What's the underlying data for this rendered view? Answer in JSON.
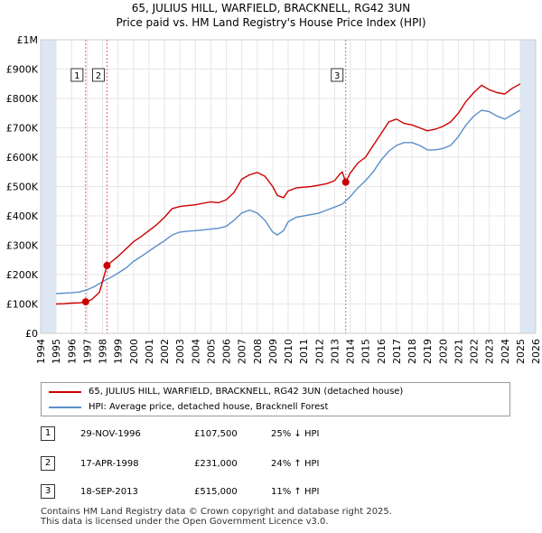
{
  "title": {
    "line1": "65, JULIUS HILL, WARFIELD, BRACKNELL, RG42 3UN",
    "line2": "Price paid vs. HM Land Registry's House Price Index (HPI)"
  },
  "colors": {
    "property": "#cc0000",
    "hpi": "#5b8fc9",
    "band": "#dde6f3",
    "grid": "#e6e6e6",
    "marker_line": "#e06666"
  },
  "chart_data": {
    "type": "line",
    "title": "Price paid vs. HM Land Registry's House Price Index (HPI)",
    "xlabel": "",
    "ylabel": "",
    "xlim": [
      1994,
      2026
    ],
    "ylim": [
      0,
      1000000
    ],
    "y_ticks": [
      {
        "value": 0,
        "label": "£0"
      },
      {
        "value": 100000,
        "label": "£100K"
      },
      {
        "value": 200000,
        "label": "£200K"
      },
      {
        "value": 300000,
        "label": "£300K"
      },
      {
        "value": 400000,
        "label": "£400K"
      },
      {
        "value": 500000,
        "label": "£500K"
      },
      {
        "value": 600000,
        "label": "£600K"
      },
      {
        "value": 700000,
        "label": "£700K"
      },
      {
        "value": 800000,
        "label": "£800K"
      },
      {
        "value": 900000,
        "label": "£900K"
      },
      {
        "value": 1000000,
        "label": "£1M"
      }
    ],
    "x_ticks": [
      "1994",
      "1995",
      "1996",
      "1997",
      "1998",
      "1999",
      "2000",
      "2001",
      "2002",
      "2003",
      "2004",
      "2005",
      "2006",
      "2007",
      "2008",
      "2009",
      "2010",
      "2011",
      "2012",
      "2013",
      "2014",
      "2015",
      "2016",
      "2017",
      "2018",
      "2019",
      "2020",
      "2021",
      "2022",
      "2023",
      "2024",
      "2025",
      "2026"
    ],
    "shaded_ranges": [
      [
        1994,
        1995
      ],
      [
        2025,
        2026
      ]
    ],
    "series": [
      {
        "name": "65, JULIUS HILL, WARFIELD, BRACKNELL, RG42 3UN (detached house)",
        "color": "#cc0000",
        "x": [
          1995.0,
          1995.5,
          1996.0,
          1996.5,
          1996.91,
          1997.3,
          1997.8,
          1998.29,
          1998.6,
          1999.0,
          1999.5,
          2000.0,
          2000.5,
          2001.0,
          2001.5,
          2002.0,
          2002.5,
          2003.0,
          2003.5,
          2004.0,
          2004.5,
          2005.0,
          2005.5,
          2006.0,
          2006.5,
          2007.0,
          2007.5,
          2008.0,
          2008.5,
          2009.0,
          2009.3,
          2009.7,
          2010.0,
          2010.5,
          2011.0,
          2011.5,
          2012.0,
          2012.5,
          2013.0,
          2013.3,
          2013.5,
          2013.72,
          2014.0,
          2014.5,
          2015.0,
          2015.5,
          2016.0,
          2016.5,
          2017.0,
          2017.5,
          2018.0,
          2018.5,
          2019.0,
          2019.5,
          2020.0,
          2020.5,
          2021.0,
          2021.5,
          2022.0,
          2022.5,
          2023.0,
          2023.5,
          2024.0,
          2024.5,
          2025.0
        ],
        "values": [
          100000,
          101000,
          103000,
          104000,
          107500,
          115000,
          140000,
          231000,
          245000,
          262000,
          287000,
          312000,
          330000,
          350000,
          370000,
          395000,
          425000,
          432000,
          435000,
          438000,
          443000,
          448000,
          445000,
          455000,
          480000,
          525000,
          540000,
          548000,
          535000,
          500000,
          470000,
          462000,
          485000,
          495000,
          498000,
          500000,
          505000,
          510000,
          520000,
          540000,
          550000,
          515000,
          545000,
          580000,
          600000,
          640000,
          680000,
          720000,
          730000,
          715000,
          710000,
          700000,
          690000,
          695000,
          705000,
          720000,
          750000,
          790000,
          820000,
          845000,
          830000,
          820000,
          815000,
          835000,
          850000
        ]
      },
      {
        "name": "HPI: Average price, detached house, Bracknell Forest",
        "color": "#5b8fc9",
        "x": [
          1995.0,
          1995.5,
          1996.0,
          1996.5,
          1997.0,
          1997.5,
          1998.0,
          1998.5,
          1999.0,
          1999.5,
          2000.0,
          2000.5,
          2001.0,
          2001.5,
          2002.0,
          2002.5,
          2003.0,
          2003.5,
          2004.0,
          2004.5,
          2005.0,
          2005.5,
          2006.0,
          2006.5,
          2007.0,
          2007.5,
          2008.0,
          2008.5,
          2009.0,
          2009.3,
          2009.7,
          2010.0,
          2010.5,
          2011.0,
          2011.5,
          2012.0,
          2012.5,
          2013.0,
          2013.5,
          2014.0,
          2014.5,
          2015.0,
          2015.5,
          2016.0,
          2016.5,
          2017.0,
          2017.5,
          2018.0,
          2018.5,
          2019.0,
          2019.5,
          2020.0,
          2020.5,
          2021.0,
          2021.5,
          2022.0,
          2022.5,
          2023.0,
          2023.5,
          2024.0,
          2024.5,
          2025.0
        ],
        "values": [
          135000,
          137000,
          138000,
          141000,
          148000,
          160000,
          176000,
          190000,
          205000,
          222000,
          245000,
          262000,
          280000,
          298000,
          315000,
          335000,
          345000,
          348000,
          350000,
          352000,
          355000,
          358000,
          365000,
          385000,
          410000,
          420000,
          410000,
          385000,
          345000,
          335000,
          350000,
          380000,
          395000,
          400000,
          405000,
          410000,
          420000,
          430000,
          440000,
          465000,
          495000,
          520000,
          550000,
          590000,
          620000,
          640000,
          650000,
          650000,
          640000,
          625000,
          625000,
          630000,
          640000,
          670000,
          710000,
          740000,
          760000,
          755000,
          740000,
          730000,
          745000,
          760000
        ]
      }
    ],
    "transactions": [
      {
        "num": "1",
        "x": 1996.91,
        "value": 107500
      },
      {
        "num": "2",
        "x": 1998.29,
        "value": 231000
      },
      {
        "num": "3",
        "x": 2013.72,
        "value": 515000
      }
    ]
  },
  "legend": {
    "property_label": "65, JULIUS HILL, WARFIELD, BRACKNELL, RG42 3UN (detached house)",
    "hpi_label": "HPI: Average price, detached house, Bracknell Forest"
  },
  "transactions_table": [
    {
      "num": "1",
      "date": "29-NOV-1996",
      "price": "£107,500",
      "hpi": "25% ↓ HPI"
    },
    {
      "num": "2",
      "date": "17-APR-1998",
      "price": "£231,000",
      "hpi": "24% ↑ HPI"
    },
    {
      "num": "3",
      "date": "18-SEP-2013",
      "price": "£515,000",
      "hpi": "11% ↑ HPI"
    }
  ],
  "footer": {
    "line1": "Contains HM Land Registry data © Crown copyright and database right 2025.",
    "line2": "This data is licensed under the Open Government Licence v3.0."
  }
}
